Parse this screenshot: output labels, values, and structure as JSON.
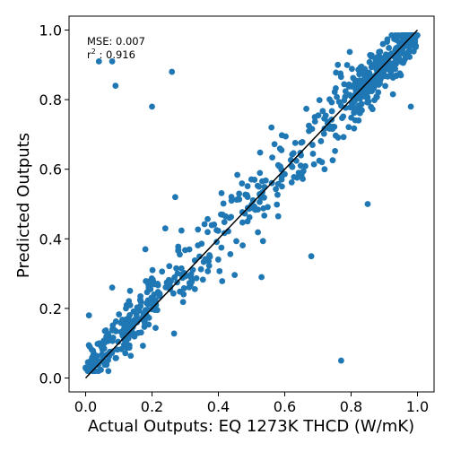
{
  "chart_data": {
    "type": "scatter",
    "xlabel": "Actual Outputs: EQ 1273K THCD (W/mK)",
    "ylabel": "Predicted Outputs",
    "xlim": [
      -0.05,
      1.05
    ],
    "ylim": [
      -0.04,
      1.04
    ],
    "xticks": [
      "0.0",
      "0.2",
      "0.4",
      "0.6",
      "0.8",
      "1.0"
    ],
    "yticks": [
      "0.0",
      "0.2",
      "0.4",
      "0.6",
      "0.8",
      "1.0"
    ],
    "grid": false,
    "annotations": {
      "mse": "MSE: 0.007",
      "r2_label": "r",
      "r2_sup": "2",
      "r2_value": " : 0.916"
    },
    "reference_line": {
      "from": [
        0.0,
        0.0
      ],
      "to": [
        1.0,
        1.0
      ],
      "color": "#000000"
    },
    "colors": {
      "points": "#1f77b4",
      "line": "#000000"
    },
    "points": {
      "outliers": [
        [
          0.04,
          0.91
        ],
        [
          0.08,
          0.91
        ],
        [
          0.09,
          0.84
        ],
        [
          0.26,
          0.88
        ],
        [
          0.2,
          0.78
        ],
        [
          0.77,
          0.05
        ],
        [
          0.68,
          0.35
        ],
        [
          0.53,
          0.29
        ],
        [
          0.27,
          0.52
        ],
        [
          0.76,
          0.9
        ],
        [
          0.95,
          0.87
        ],
        [
          0.98,
          0.78
        ],
        [
          0.85,
          0.5
        ],
        [
          0.0,
          0.03
        ],
        [
          0.01,
          0.18
        ],
        [
          0.08,
          0.26
        ],
        [
          0.18,
          0.37
        ],
        [
          0.24,
          0.43
        ],
        [
          0.56,
          0.72
        ],
        [
          0.72,
          0.6
        ]
      ],
      "main": {
        "count": 750,
        "x_range": [
          0.0,
          1.0
        ],
        "y_equals_x_spread": 0.045
      }
    }
  }
}
